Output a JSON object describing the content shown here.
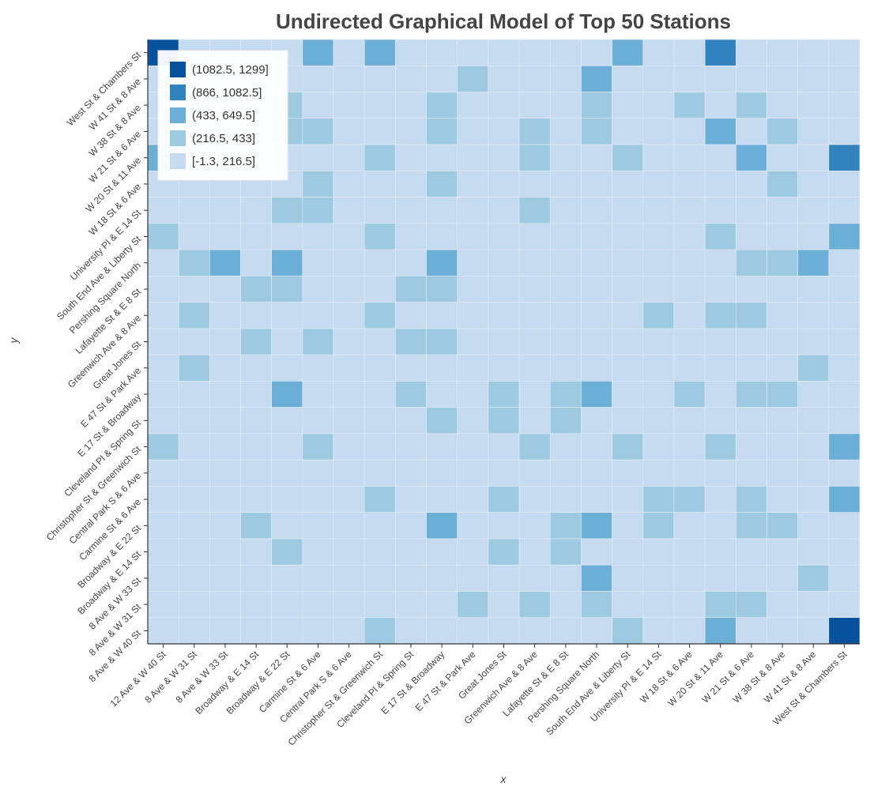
{
  "chart_data": {
    "type": "heatmap",
    "title": "Undirected Graphical Model of Top 50 Stations",
    "xlabel": "x",
    "ylabel": "y",
    "x_categories": [
      "12 Ave & W 40 St",
      "8 Ave & W 31 St",
      "8 Ave & W 33 St",
      "Broadway & E 14 St",
      "Broadway & E 22 St",
      "Carmine St & 6 Ave",
      "Central Park S & 6 Ave",
      "Christopher St & Greenwich St",
      "Cleveland Pl & Spring St",
      "E 17 St & Broadway",
      "E 47 St & Park Ave",
      "Great Jones St",
      "Greenwich Ave & 8 Ave",
      "Lafayette St & E 8 St",
      "Pershing Square North",
      "South End Ave & Liberty St",
      "University Pl & E 14 St",
      "W 18 St & 6 Ave",
      "W 20 St & 11 Ave",
      "W 21 St & 6 Ave",
      "W 38 St & 8 Ave",
      "W 41 St & 8 Ave",
      "West St & Chambers St"
    ],
    "y_categories": [
      "West St & Chambers St",
      "W 41 St & 8 Ave",
      "W 38 St & 8 Ave",
      "W 21 St & 6 Ave",
      "W 20 St & 11 Ave",
      "W 18 St & 6 Ave",
      "University Pl & E 14 St",
      "South End Ave & Liberty St",
      "Pershing Square North",
      "Lafayette St & E 8 St",
      "Greenwich Ave & 8 Ave",
      "Great Jones St",
      "E 47 St & Park Ave",
      "E 17 St & Broadway",
      "Cleveland Pl & Spring St",
      "Christopher St & Greenwich St",
      "Central Park S & 6 Ave",
      "Carmine St & 6 Ave",
      "Broadway & E 22 St",
      "Broadway & E 14 St",
      "8 Ave & W 33 St",
      "8 Ave & W 31 St",
      "8 Ave & W 40 St"
    ],
    "bins": [
      {
        "label": "(1082.5, 1299]",
        "color": "#08519c"
      },
      {
        "label": "(866, 1082.5]",
        "color": "#3182bd"
      },
      {
        "label": "(433, 649.5]",
        "color": "#6baed6"
      },
      {
        "label": "(216.5, 433]",
        "color": "#9ecae1"
      },
      {
        "label": "[-1.3, 216.5]",
        "color": "#c6dbef"
      }
    ],
    "matrix_bin_index": [
      [
        0,
        4,
        4,
        4,
        4,
        2,
        4,
        2,
        4,
        4,
        4,
        4,
        4,
        4,
        4,
        2,
        4,
        4,
        1,
        4,
        4,
        4,
        4
      ],
      [
        4,
        4,
        4,
        4,
        4,
        4,
        4,
        4,
        4,
        4,
        3,
        4,
        4,
        4,
        2,
        4,
        4,
        4,
        4,
        4,
        4,
        4,
        4
      ],
      [
        4,
        4,
        4,
        4,
        3,
        4,
        4,
        4,
        4,
        3,
        4,
        4,
        4,
        4,
        3,
        4,
        4,
        3,
        4,
        3,
        4,
        4,
        4
      ],
      [
        4,
        4,
        4,
        4,
        3,
        3,
        4,
        4,
        4,
        3,
        4,
        4,
        3,
        4,
        3,
        4,
        4,
        4,
        2,
        4,
        3,
        4,
        4
      ],
      [
        2,
        4,
        4,
        4,
        4,
        4,
        4,
        3,
        4,
        4,
        4,
        4,
        3,
        4,
        4,
        3,
        4,
        4,
        4,
        2,
        4,
        4,
        1
      ],
      [
        4,
        4,
        4,
        4,
        4,
        3,
        4,
        4,
        4,
        3,
        4,
        4,
        4,
        4,
        4,
        4,
        4,
        4,
        4,
        4,
        3,
        4,
        4
      ],
      [
        4,
        4,
        4,
        4,
        3,
        3,
        4,
        4,
        4,
        4,
        4,
        4,
        3,
        4,
        4,
        4,
        4,
        4,
        4,
        4,
        4,
        4,
        4
      ],
      [
        3,
        4,
        4,
        4,
        4,
        4,
        4,
        3,
        4,
        4,
        4,
        4,
        4,
        4,
        4,
        4,
        4,
        4,
        3,
        4,
        4,
        4,
        2
      ],
      [
        4,
        3,
        2,
        4,
        2,
        4,
        4,
        4,
        4,
        2,
        4,
        4,
        4,
        4,
        4,
        4,
        4,
        4,
        4,
        3,
        3,
        2,
        4
      ],
      [
        4,
        4,
        4,
        3,
        3,
        4,
        4,
        4,
        3,
        3,
        4,
        4,
        4,
        4,
        4,
        4,
        4,
        4,
        4,
        4,
        4,
        4,
        4
      ],
      [
        4,
        3,
        4,
        4,
        4,
        4,
        4,
        3,
        4,
        4,
        4,
        4,
        4,
        4,
        4,
        4,
        3,
        4,
        3,
        3,
        4,
        4,
        4
      ],
      [
        4,
        4,
        4,
        3,
        4,
        3,
        4,
        4,
        3,
        3,
        4,
        4,
        4,
        4,
        4,
        4,
        4,
        4,
        4,
        4,
        4,
        4,
        4
      ],
      [
        4,
        3,
        4,
        4,
        4,
        4,
        4,
        4,
        4,
        4,
        4,
        4,
        4,
        4,
        4,
        4,
        4,
        4,
        4,
        4,
        4,
        3,
        4
      ],
      [
        4,
        4,
        4,
        4,
        2,
        4,
        4,
        4,
        3,
        4,
        4,
        3,
        4,
        3,
        2,
        4,
        4,
        3,
        4,
        3,
        3,
        4,
        4
      ],
      [
        4,
        4,
        4,
        4,
        4,
        4,
        4,
        4,
        4,
        3,
        4,
        3,
        4,
        3,
        4,
        4,
        4,
        4,
        4,
        4,
        4,
        4,
        4
      ],
      [
        3,
        4,
        4,
        4,
        4,
        3,
        4,
        4,
        4,
        4,
        4,
        4,
        3,
        4,
        4,
        3,
        4,
        4,
        3,
        4,
        4,
        4,
        2
      ],
      [
        4,
        4,
        4,
        4,
        4,
        4,
        4,
        4,
        4,
        4,
        4,
        4,
        4,
        4,
        4,
        4,
        4,
        4,
        4,
        4,
        4,
        4,
        4
      ],
      [
        4,
        4,
        4,
        4,
        4,
        4,
        4,
        3,
        4,
        4,
        4,
        3,
        4,
        4,
        4,
        4,
        3,
        3,
        4,
        3,
        4,
        4,
        2
      ],
      [
        4,
        4,
        4,
        3,
        4,
        4,
        4,
        4,
        4,
        2,
        4,
        4,
        4,
        3,
        2,
        4,
        3,
        4,
        4,
        3,
        3,
        4,
        4
      ],
      [
        4,
        4,
        4,
        4,
        3,
        4,
        4,
        4,
        4,
        4,
        4,
        3,
        4,
        3,
        4,
        4,
        4,
        4,
        4,
        4,
        4,
        4,
        4
      ],
      [
        4,
        4,
        4,
        4,
        4,
        4,
        4,
        4,
        4,
        4,
        4,
        4,
        4,
        4,
        2,
        4,
        4,
        4,
        4,
        4,
        4,
        3,
        4
      ],
      [
        4,
        4,
        4,
        4,
        4,
        4,
        4,
        4,
        4,
        4,
        3,
        4,
        3,
        4,
        3,
        4,
        4,
        4,
        3,
        3,
        4,
        4,
        4
      ],
      [
        4,
        4,
        4,
        4,
        4,
        4,
        4,
        3,
        4,
        4,
        4,
        4,
        4,
        4,
        4,
        3,
        4,
        4,
        2,
        4,
        4,
        4,
        0
      ]
    ],
    "legend_position": "top-left",
    "grid": true
  }
}
